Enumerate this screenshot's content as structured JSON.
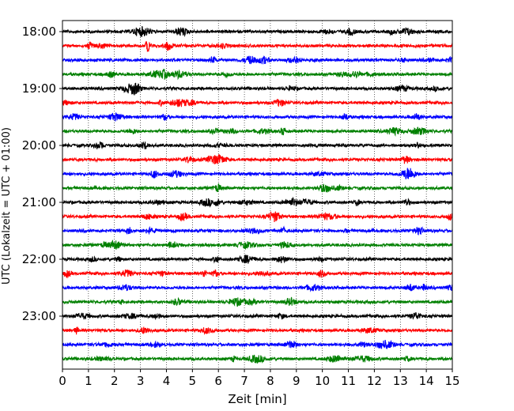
{
  "chart_data": {
    "type": "line",
    "subtype": "seismogram-helicorder",
    "xlabel": "Zeit  [min]",
    "ylabel": "UTC (Lokalzeit = UTC + 01:00)",
    "xlim": [
      0,
      15
    ],
    "x_ticks": [
      "0",
      "1",
      "2",
      "3",
      "4",
      "5",
      "6",
      "7",
      "8",
      "9",
      "10",
      "11",
      "12",
      "13",
      "14",
      "15"
    ],
    "y_ticks": [
      {
        "label": "18:00",
        "trace": 0
      },
      {
        "label": "19:00",
        "trace": 4
      },
      {
        "label": "20:00",
        "trace": 8
      },
      {
        "label": "21:00",
        "trace": 12
      },
      {
        "label": "22:00",
        "trace": 16
      },
      {
        "label": "23:00",
        "trace": 20
      }
    ],
    "grid": "vertical-dotted",
    "color_cycle": [
      "#000000",
      "#ff0000",
      "#0000ff",
      "#008000"
    ],
    "traces": [
      {
        "start": "18:00",
        "color": "#000000"
      },
      {
        "start": "18:15",
        "color": "#ff0000"
      },
      {
        "start": "18:30",
        "color": "#0000ff"
      },
      {
        "start": "18:45",
        "color": "#008000"
      },
      {
        "start": "19:00",
        "color": "#000000"
      },
      {
        "start": "19:15",
        "color": "#ff0000"
      },
      {
        "start": "19:30",
        "color": "#0000ff"
      },
      {
        "start": "19:45",
        "color": "#008000"
      },
      {
        "start": "20:00",
        "color": "#000000"
      },
      {
        "start": "20:15",
        "color": "#ff0000"
      },
      {
        "start": "20:30",
        "color": "#0000ff"
      },
      {
        "start": "20:45",
        "color": "#008000"
      },
      {
        "start": "21:00",
        "color": "#000000"
      },
      {
        "start": "21:15",
        "color": "#ff0000"
      },
      {
        "start": "21:30",
        "color": "#0000ff"
      },
      {
        "start": "21:45",
        "color": "#008000"
      },
      {
        "start": "22:00",
        "color": "#000000"
      },
      {
        "start": "22:15",
        "color": "#ff0000"
      },
      {
        "start": "22:30",
        "color": "#0000ff"
      },
      {
        "start": "22:45",
        "color": "#008000"
      },
      {
        "start": "23:00",
        "color": "#000000"
      },
      {
        "start": "23:15",
        "color": "#ff0000"
      },
      {
        "start": "23:30",
        "color": "#0000ff"
      },
      {
        "start": "23:45",
        "color": "#008000"
      }
    ]
  }
}
